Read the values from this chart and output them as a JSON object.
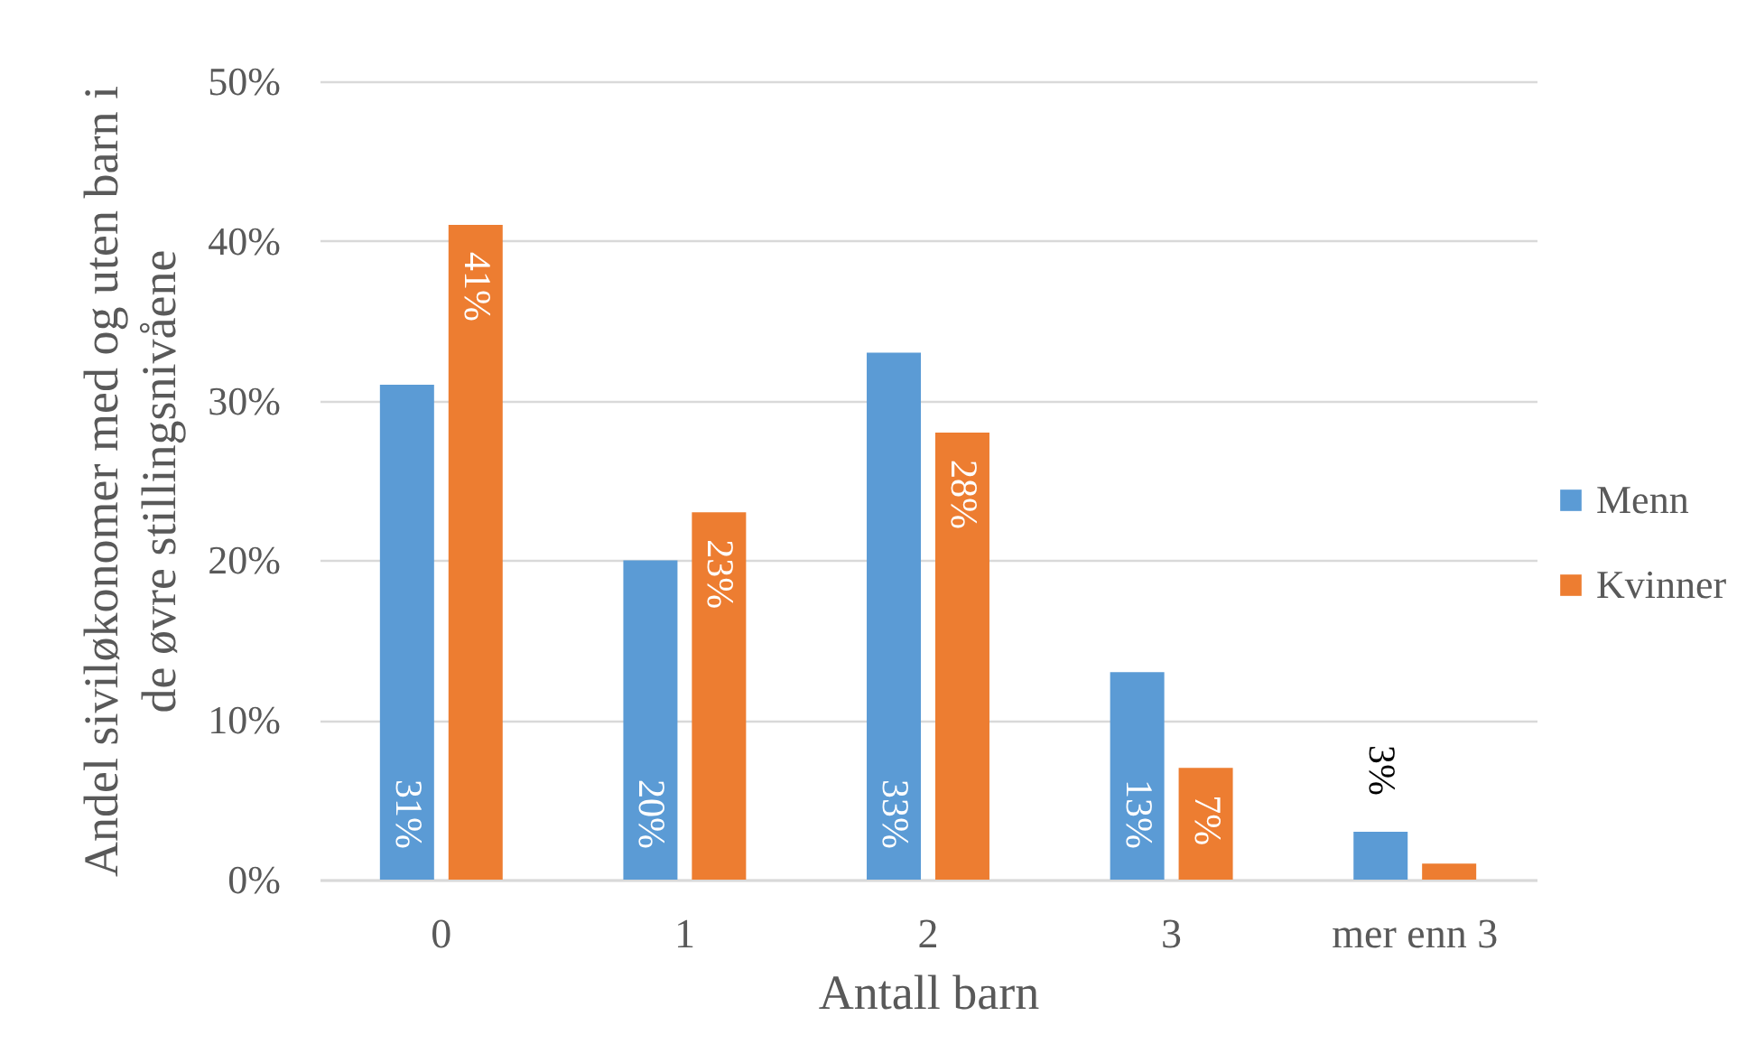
{
  "chart_data": {
    "type": "bar",
    "xlabel": "Antall barn",
    "ylabel": "Andel siviløkonomer med og uten barn i de øvre stillingsnivåene",
    "categories": [
      "0",
      "1",
      "2",
      "3",
      "mer enn 3"
    ],
    "series": [
      {
        "name": "Menn",
        "color": "#5b9bd5",
        "values": [
          31,
          20,
          33,
          13,
          3
        ],
        "value_labels": [
          "31%",
          "20%",
          "33%",
          "13%",
          "3%"
        ]
      },
      {
        "name": "Kvinner",
        "color": "#ed7d31",
        "values": [
          41,
          23,
          28,
          7,
          1
        ],
        "value_labels": [
          "41%",
          "23%",
          "28%",
          "7%",
          null
        ]
      }
    ],
    "ylim": [
      0,
      50
    ],
    "yticks": [
      {
        "value": 0,
        "label": "0%"
      },
      {
        "value": 10,
        "label": "10%"
      },
      {
        "value": 20,
        "label": "20%"
      },
      {
        "value": 30,
        "label": "30%"
      },
      {
        "value": 40,
        "label": "40%"
      },
      {
        "value": 50,
        "label": "50%"
      }
    ],
    "grid": "y",
    "legend": "right"
  }
}
